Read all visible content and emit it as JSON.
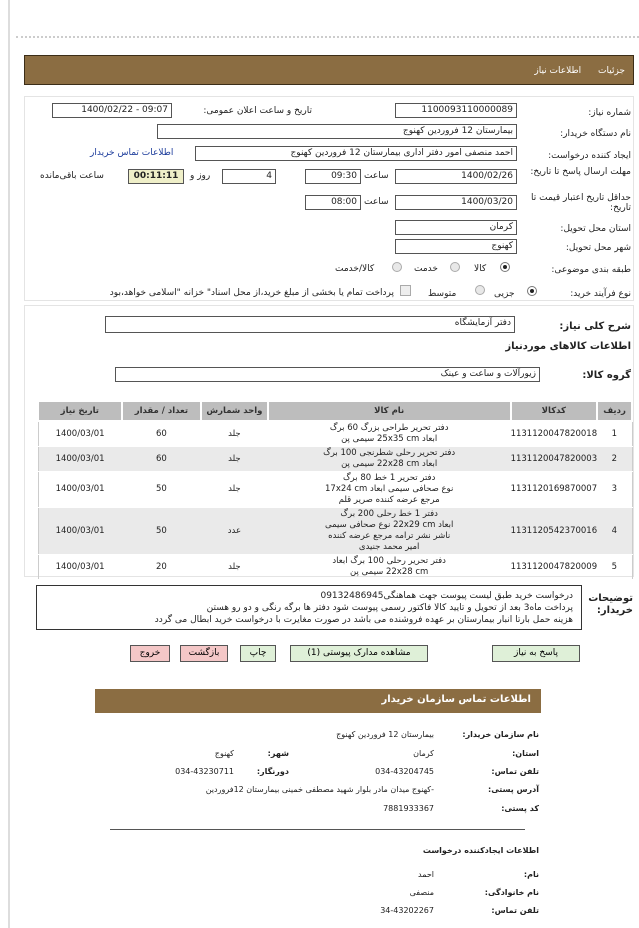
{
  "header": {
    "tabs": [
      "جزئیات",
      "اطلاعات نیاز"
    ]
  },
  "form": {
    "need_number_label": "شماره نیاز:",
    "need_number": "1100093110000089",
    "announce_label": "تاریخ و ساعت اعلان عمومی:",
    "announce_value": "1400/02/22 - 09:07",
    "buyer_label": "نام دستگاه خریدار:",
    "buyer": "بیمارستان 12 فروردین کهنوج",
    "creator_label": "ایجاد کننده درخواست:",
    "creator": "احمد منصفی امور دفتر اداری بیمارستان 12 فروردین کهنوج",
    "contact_link": "اطلاعات تماس خریدار",
    "deadline_label": "مهلت ارسال پاسخ تا تاریخ:",
    "deadline_date": "1400/02/26",
    "time_label": "ساعت",
    "deadline_time": "09:30",
    "days": "4",
    "days_label": "روز و",
    "remaining": "00:11:11",
    "remaining_label": "ساعت باقی‌مانده",
    "validity_label": "حداقل تاریخ اعتبار قیمت تا تاریخ:",
    "validity_date": "1400/03/20",
    "validity_time": "08:00",
    "province_label": "استان محل تحویل:",
    "province": "کرمان",
    "city_label": "شهر محل تحویل:",
    "city": "کهنوج",
    "category_label": "طبقه بندی موضوعی:",
    "category_options": [
      "کالا",
      "خدمت",
      "کالا/خدمت"
    ],
    "category_selected": "کالا",
    "process_label": "نوع فرآیند خرید:",
    "process_options": [
      "جزیی",
      "متوسط"
    ],
    "process_selected": "جزیی",
    "payment_note": "پرداخت تمام یا بخشی از مبلغ خرید،از محل اسناد\" خزانه \"اسلامی خواهد،بود"
  },
  "need": {
    "desc_label": "شرح کلی نیاز:",
    "desc": "دفتر آزمایشگاه",
    "goods_title": "اطلاعات کالاهای موردنیاز",
    "group_label": "گروه کالا:",
    "group": "زیورآلات و ساعت و عینک"
  },
  "table": {
    "headers": [
      "ردیف",
      "کدکالا",
      "نام کالا",
      "واحد شمارش",
      "تعداد / مقدار",
      "تاریخ نیاز"
    ],
    "rows": [
      [
        "1",
        "1131120047820018",
        [
          "دفتر تحریر طراحی بزرگ 60 برگ",
          "ابعاد 25x35 cm سیمی پن"
        ],
        "جلد",
        "60",
        "1400/03/01"
      ],
      [
        "2",
        "1131120047820003",
        [
          "دفتر تحریر رحلی شطرنجی 100 برگ",
          "ابعاد 22x28 cm سیمی پن"
        ],
        "جلد",
        "60",
        "1400/03/01"
      ],
      [
        "3",
        "1131120169870007",
        [
          "دفتر تحریر 1 خط 80 برگ",
          "نوع صحافی سیمی ابعاد 17x24 cm",
          "مرجع عرضه کننده صریر قلم"
        ],
        "جلد",
        "50",
        "1400/03/01"
      ],
      [
        "4",
        "1131120542370016",
        [
          "دفتر 1 خط رحلی 200 برگ",
          "ابعاد 22x29 cm نوع صحافی سیمی",
          "ناشر نشر ترامه مرجع عرضه کننده",
          "امیر محمد جنیدی"
        ],
        "عدد",
        "50",
        "1400/03/01"
      ],
      [
        "5",
        "1131120047820009",
        [
          "دفتر تحریر رحلی 100 برگ ابعاد",
          "22x28 cm سیمی پن"
        ],
        "جلد",
        "20",
        "1400/03/01"
      ]
    ]
  },
  "buyer_notes": {
    "label": "توضیحات خریدار:",
    "lines": [
      "درخواست خرید طبق لیست پیوست جهت هماهنگی09132486945",
      "پرداخت ماه3 بعد از تحویل و تایید کالا فاکتور رسمی پیوست شود دفتر ها برگه رنگی و دو رو هستن",
      "هزینه حمل بارتا انبار بیمارستان بر عهده فروشنده می باشد در صورت مغایرت با درخواست خرید ابطال می گردد"
    ]
  },
  "buttons": {
    "reply": "پاسخ به نیاز",
    "attachments": "مشاهده مدارک پیوستی (1)",
    "print": "چاپ",
    "back": "بازگشت",
    "exit": "خروج"
  },
  "contact": {
    "title": "اطلاعات تماس سازمان خریدار",
    "org_label": "نام سازمان خریدار:",
    "org": "بیمارستان 12 فروردین کهنوج",
    "province_label": "استان:",
    "province": "کرمان",
    "city_label": "شهر:",
    "city": "کهنوج",
    "phone_label": "تلفن تماس:",
    "phone": "034-43204745",
    "fax_label": "دورنگار:",
    "fax": "034-43230711",
    "address_label": "آدرس پستی:",
    "address": "-کهنوج میدان مادر بلوار شهید مصطفی خمینی بیمارستان 12فروردین",
    "postal_label": "کد پستی:",
    "postal": "7881933367",
    "creator_title": "اطلاعات ایجادکننده درخواست",
    "name_label": "نام:",
    "name": "احمد",
    "family_label": "نام خانوادگی:",
    "family": "منصفی",
    "creator_phone_label": "تلفن تماس:",
    "creator_phone": "34-43202267"
  },
  "colors": {
    "brand": "#8b6d42",
    "green_button": "#dff0d8",
    "red_button": "#f4c7c7",
    "timer": "#efefc8"
  }
}
